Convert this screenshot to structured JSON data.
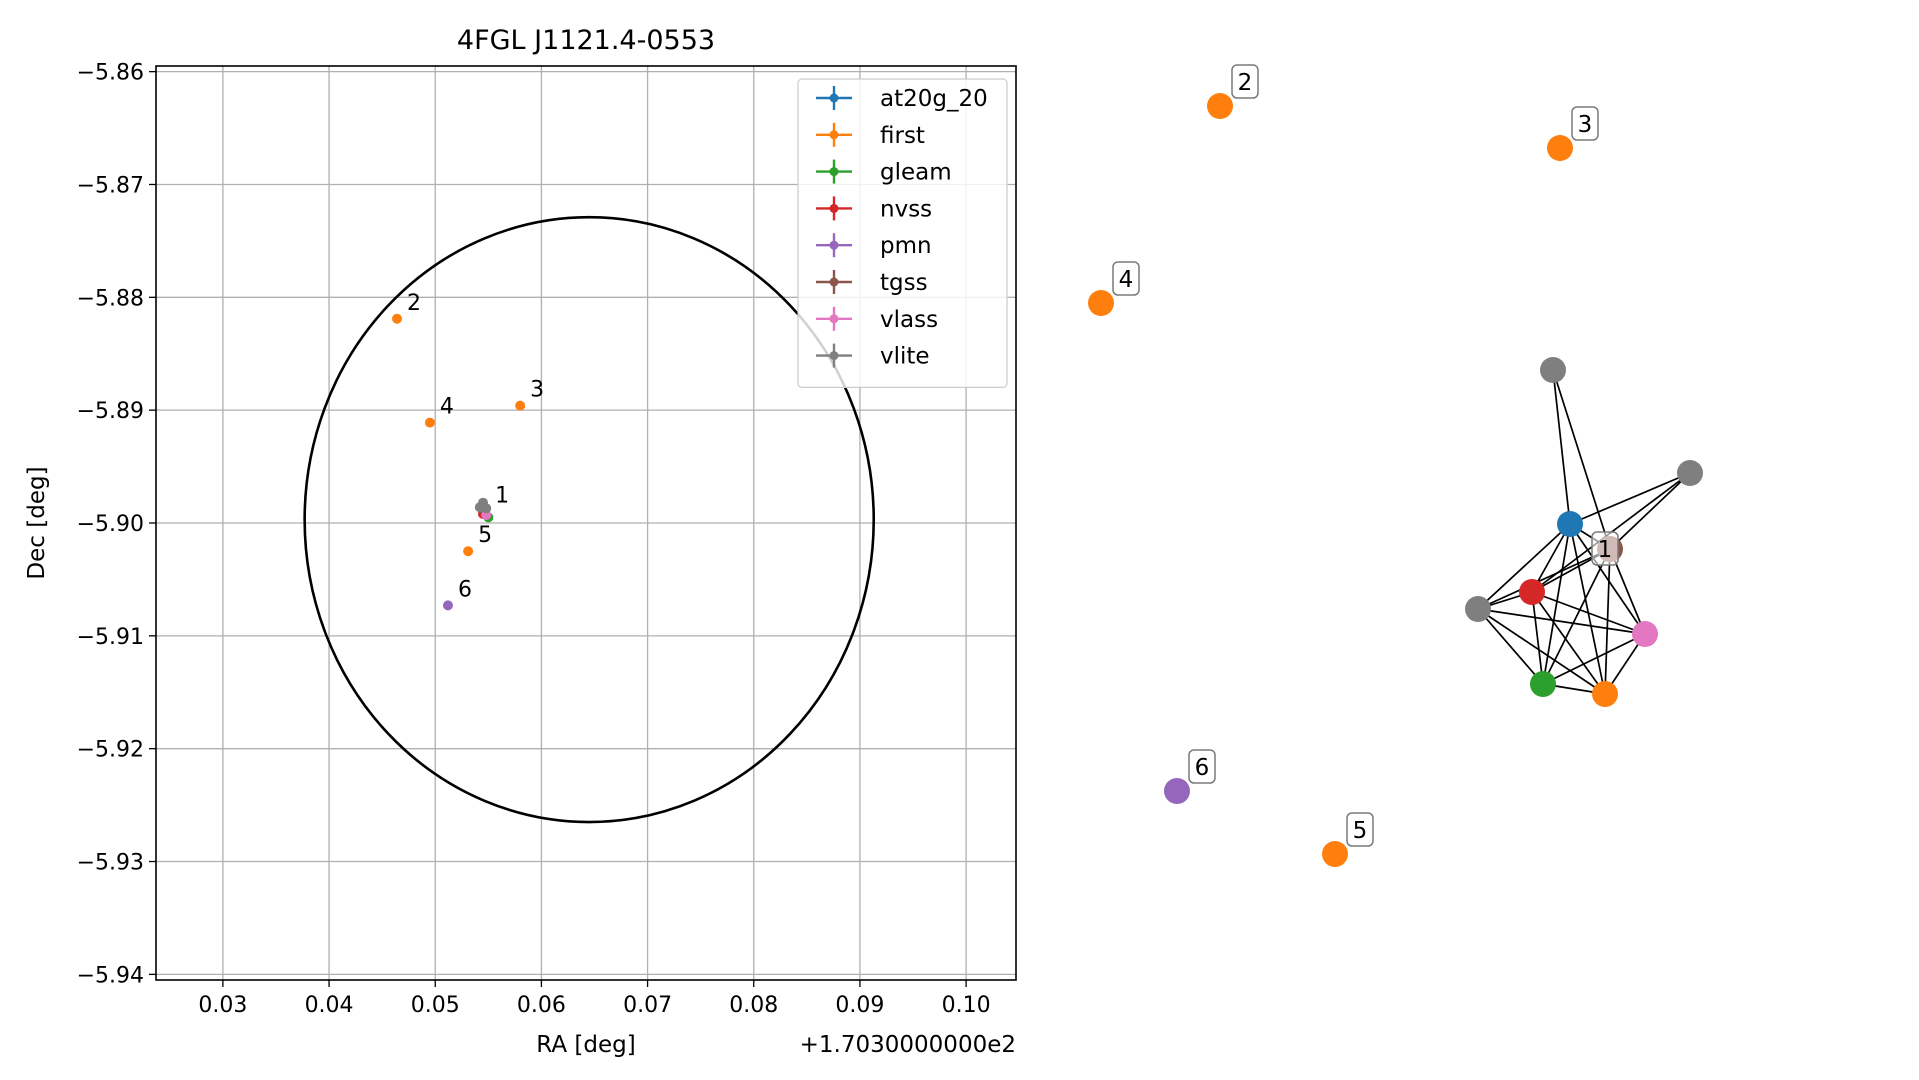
{
  "chart_data": [
    {
      "type": "scatter",
      "title": "4FGL J1121.4-0553",
      "xlabel": "RA [deg]",
      "ylabel": "Dec [deg]",
      "x_offset_label": "+1.7030000000e2",
      "xlim": [
        0.0237,
        0.1047
      ],
      "ylim": [
        -5.9405,
        -5.8595
      ],
      "xticks": [
        "0.03",
        "0.04",
        "0.05",
        "0.06",
        "0.07",
        "0.08",
        "0.09",
        "0.10"
      ],
      "yticks": [
        "−5.86",
        "−5.87",
        "−5.88",
        "−5.89",
        "−5.90",
        "−5.91",
        "−5.92",
        "−5.93",
        "−5.94"
      ],
      "grid": true,
      "legend_position": "top-right",
      "ellipse": {
        "center": [
          0.0645,
          -5.8997
        ],
        "radius_x": 0.0268,
        "radius_y": 0.0268,
        "color": "#000000"
      },
      "series": [
        {
          "name": "at20g_20",
          "color": "#1f77b4",
          "points": [
            {
              "x": 0.0546,
              "y": -5.8988,
              "label": ""
            }
          ]
        },
        {
          "name": "first",
          "color": "#ff7f0e",
          "points": [
            {
              "x": 0.0464,
              "y": -5.8819,
              "label": "2"
            },
            {
              "x": 0.058,
              "y": -5.8896,
              "label": "3"
            },
            {
              "x": 0.0495,
              "y": -5.8911,
              "label": "4"
            },
            {
              "x": 0.0531,
              "y": -5.9025,
              "label": "5"
            }
          ]
        },
        {
          "name": "gleam",
          "color": "#2ca02c",
          "points": [
            {
              "x": 0.055,
              "y": -5.8995,
              "label": ""
            }
          ]
        },
        {
          "name": "nvss",
          "color": "#d62728",
          "points": [
            {
              "x": 0.0545,
              "y": -5.8992,
              "label": ""
            }
          ]
        },
        {
          "name": "pmn",
          "color": "#9467bd",
          "points": [
            {
              "x": 0.0512,
              "y": -5.9073,
              "label": "6"
            }
          ]
        },
        {
          "name": "tgss",
          "color": "#8c564b",
          "points": [
            {
              "x": 0.0547,
              "y": -5.899,
              "label": "1"
            }
          ]
        },
        {
          "name": "vlass",
          "color": "#e377c2",
          "points": [
            {
              "x": 0.0548,
              "y": -5.8993,
              "label": ""
            }
          ]
        },
        {
          "name": "vlite",
          "color": "#7f7f7f",
          "points": [
            {
              "x": 0.0545,
              "y": -5.8982,
              "label": ""
            },
            {
              "x": 0.0542,
              "y": -5.8986,
              "label": ""
            },
            {
              "x": 0.0548,
              "y": -5.8987,
              "label": ""
            }
          ]
        }
      ]
    },
    {
      "type": "diagram",
      "nodes": [
        {
          "id": "at20g",
          "color": "#1f77b4",
          "label": ""
        },
        {
          "id": "tgss",
          "color": "#8c564b",
          "label": "1"
        },
        {
          "id": "nvss",
          "color": "#d62728",
          "label": ""
        },
        {
          "id": "vlite_a",
          "color": "#7f7f7f",
          "label": ""
        },
        {
          "id": "vlite_b",
          "color": "#7f7f7f",
          "label": ""
        },
        {
          "id": "vlite_c",
          "color": "#7f7f7f",
          "label": ""
        },
        {
          "id": "vlass",
          "color": "#e377c2",
          "label": ""
        },
        {
          "id": "gleam",
          "color": "#2ca02c",
          "label": ""
        },
        {
          "id": "first_1",
          "color": "#ff7f0e",
          "label": ""
        },
        {
          "id": "first_2",
          "color": "#ff7f0e",
          "label": "2"
        },
        {
          "id": "first_3",
          "color": "#ff7f0e",
          "label": "3"
        },
        {
          "id": "first_4",
          "color": "#ff7f0e",
          "label": "4"
        },
        {
          "id": "first_5",
          "color": "#ff7f0e",
          "label": "5"
        },
        {
          "id": "pmn_6",
          "color": "#9467bd",
          "label": "6"
        }
      ],
      "edges": [
        [
          "vlite_a",
          "at20g"
        ],
        [
          "vlite_a",
          "tgss"
        ],
        [
          "vlite_b",
          "at20g"
        ],
        [
          "vlite_b",
          "tgss"
        ],
        [
          "vlite_b",
          "nvss"
        ],
        [
          "at20g",
          "tgss"
        ],
        [
          "at20g",
          "nvss"
        ],
        [
          "at20g",
          "vlite_c"
        ],
        [
          "at20g",
          "gleam"
        ],
        [
          "at20g",
          "first_1"
        ],
        [
          "at20g",
          "vlass"
        ],
        [
          "tgss",
          "nvss"
        ],
        [
          "tgss",
          "vlite_c"
        ],
        [
          "tgss",
          "gleam"
        ],
        [
          "tgss",
          "first_1"
        ],
        [
          "tgss",
          "vlass"
        ],
        [
          "nvss",
          "vlite_c"
        ],
        [
          "nvss",
          "gleam"
        ],
        [
          "nvss",
          "first_1"
        ],
        [
          "nvss",
          "vlass"
        ],
        [
          "vlite_c",
          "gleam"
        ],
        [
          "vlite_c",
          "first_1"
        ],
        [
          "vlite_c",
          "vlass"
        ],
        [
          "gleam",
          "first_1"
        ],
        [
          "gleam",
          "vlass"
        ],
        [
          "first_1",
          "vlass"
        ]
      ]
    }
  ]
}
